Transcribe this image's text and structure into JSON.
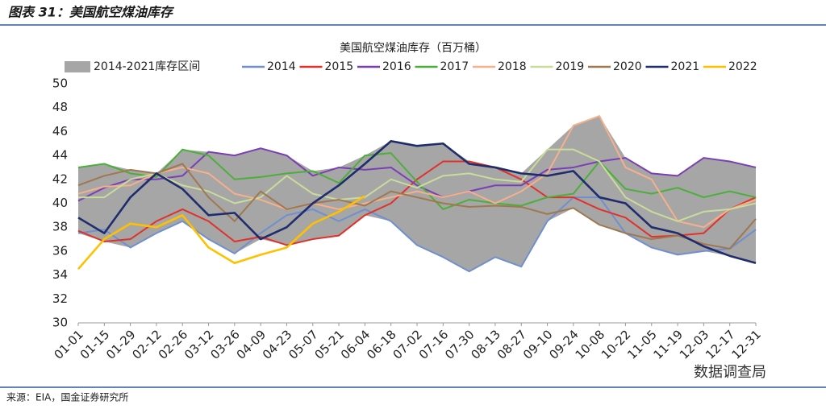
{
  "header": {
    "title": "图表 31：美国航空煤油库存"
  },
  "footer": {
    "source": "来源：EIA，国金证券研究所",
    "watermark": "数据调查局"
  },
  "chart_data": {
    "type": "line",
    "title": "美国航空煤油库存（百万桶）",
    "categories": [
      "01-01",
      "01-15",
      "01-29",
      "02-12",
      "02-26",
      "03-12",
      "03-26",
      "04-09",
      "04-23",
      "05-07",
      "05-21",
      "06-04",
      "06-18",
      "07-02",
      "07-16",
      "07-30",
      "08-13",
      "08-27",
      "09-10",
      "09-24",
      "10-08",
      "10-22",
      "11-05",
      "11-19",
      "12-03",
      "12-17",
      "12-31"
    ],
    "ylim": [
      30,
      50
    ],
    "yticks": [
      30,
      32,
      34,
      36,
      38,
      40,
      42,
      44,
      46,
      48,
      50
    ],
    "band": {
      "name": "2014-2021库存区间",
      "color": "#a6a6a6",
      "low": [
        37.5,
        36.8,
        36.3,
        37.5,
        38.5,
        37,
        35.8,
        37,
        36.5,
        37,
        37.3,
        39,
        38.5,
        36.5,
        35.5,
        34.3,
        35.5,
        34.7,
        38.5,
        39.6,
        38.2,
        37.5,
        36.3,
        35.7,
        36,
        35.6,
        35
      ],
      "high": [
        43,
        43.3,
        42.8,
        42.5,
        44.5,
        44.3,
        44,
        44.6,
        44,
        42.7,
        43,
        44,
        45.2,
        44.8,
        45,
        43.5,
        43,
        42.5,
        44.5,
        46.5,
        47.3,
        43.8,
        42.5,
        42.3,
        43.8,
        43.5,
        43
      ]
    },
    "series": [
      {
        "name": "2014",
        "color": "#6f8fd0",
        "values": [
          37.5,
          37.8,
          36.3,
          37.5,
          38.5,
          37,
          35.8,
          37.5,
          39,
          39.5,
          38.5,
          39.5,
          38.5,
          36.5,
          35.5,
          34.3,
          35.5,
          34.7,
          38.5,
          40.5,
          40.5,
          37.5,
          36.3,
          35.7,
          36,
          36.2,
          37.8
        ]
      },
      {
        "name": "2015",
        "color": "#e0322b",
        "values": [
          37.7,
          36.8,
          37,
          38.5,
          39.5,
          38.5,
          36.8,
          37.2,
          36.5,
          37,
          37.3,
          39,
          40,
          42,
          43.5,
          43.5,
          43,
          42,
          40.5,
          40.5,
          39.5,
          38.8,
          37.2,
          37.3,
          37.5,
          39.5,
          40.5
        ]
      },
      {
        "name": "2016",
        "color": "#7b3fb5",
        "values": [
          40.2,
          41.3,
          42,
          42,
          42.3,
          44.3,
          44,
          44.6,
          44,
          42.3,
          43,
          42.8,
          43,
          41.5,
          40.5,
          41,
          41.5,
          41.5,
          42.8,
          43,
          43.5,
          43.8,
          42.5,
          42.3,
          43.8,
          43.5,
          43
        ]
      },
      {
        "name": "2017",
        "color": "#4caf3a",
        "values": [
          43,
          43.3,
          42.5,
          42.2,
          44.5,
          44,
          42,
          42.2,
          42.5,
          42.7,
          41.7,
          44,
          44.2,
          41.8,
          39.5,
          40.3,
          40,
          39.8,
          40.5,
          40.8,
          43.5,
          41.2,
          40.8,
          41.3,
          40.5,
          41,
          40.5
        ]
      },
      {
        "name": "2018",
        "color": "#f6b08a",
        "values": [
          40.8,
          41.4,
          41.5,
          42.5,
          43,
          42.5,
          40.8,
          40.3,
          39.5,
          40,
          39.5,
          40,
          40.5,
          41,
          40.5,
          41,
          40,
          41,
          42.5,
          46.5,
          47.3,
          43,
          42,
          38.5,
          38,
          39.5,
          40.3
        ]
      },
      {
        "name": "2019",
        "color": "#c9dc9a",
        "values": [
          40.5,
          40.5,
          42,
          42.5,
          41.5,
          41,
          40,
          40.5,
          42.3,
          40.8,
          40.3,
          40.5,
          42,
          41.3,
          42.3,
          42.5,
          42,
          41.8,
          44.5,
          44.5,
          43.5,
          40.5,
          39.3,
          38.5,
          39.3,
          39.5,
          40
        ]
      },
      {
        "name": "2020",
        "color": "#a07850",
        "values": [
          41.5,
          42.3,
          42.8,
          42.5,
          43.3,
          40.5,
          38.5,
          41,
          39.5,
          40,
          40.3,
          39.8,
          41,
          40.5,
          40,
          39.7,
          39.8,
          39.7,
          39.1,
          39.6,
          38.2,
          37.5,
          37,
          37.3,
          36.6,
          36.2,
          38.7
        ]
      },
      {
        "name": "2021",
        "color": "#1f2d6e",
        "values": [
          38.8,
          37.5,
          40.5,
          42.5,
          41.2,
          39,
          39.2,
          37,
          38,
          40,
          41.5,
          43.3,
          45.2,
          44.8,
          45,
          43.3,
          43,
          42.5,
          42.3,
          42.7,
          40.5,
          40,
          38,
          37.5,
          36.4,
          35.6,
          35
        ]
      },
      {
        "name": "2022",
        "color": "#ffc000",
        "values": [
          34.5,
          37,
          38.3,
          38,
          39,
          36.3,
          35,
          35.7,
          36.3,
          38.3,
          39.3,
          40.6,
          null,
          null,
          null,
          null,
          null,
          null,
          null,
          null,
          null,
          null,
          null,
          null,
          null,
          null,
          null
        ]
      }
    ]
  }
}
